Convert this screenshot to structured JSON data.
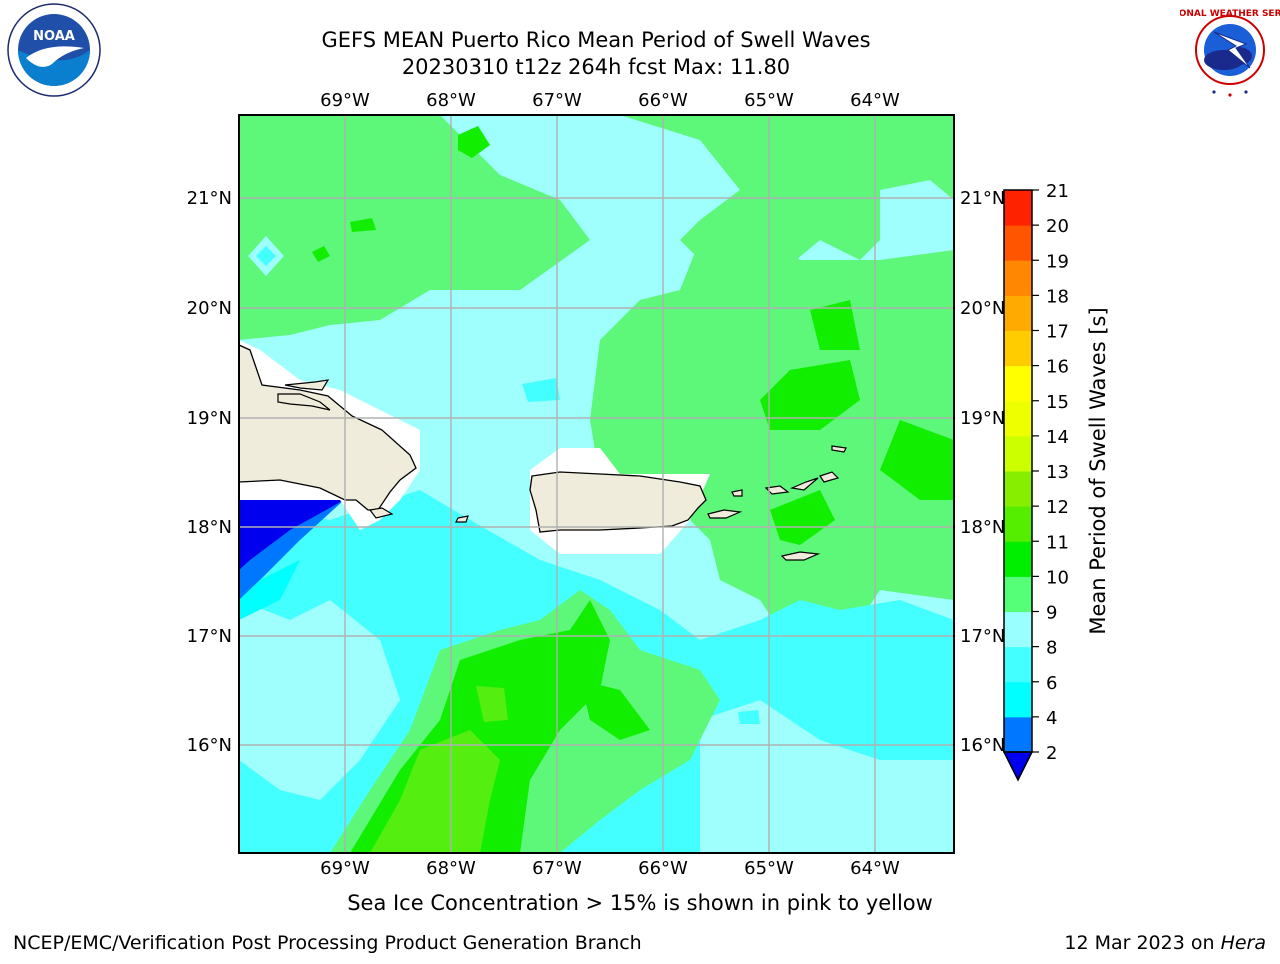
{
  "title": {
    "line1": "GEFS MEAN Puerto Rico Mean Period of Swell Waves",
    "line2": "20230310 t12z 264h fcst   Max: 11.80"
  },
  "map": {
    "lon_labels": [
      "69°W",
      "68°W",
      "67°W",
      "66°W",
      "65°W",
      "64°W"
    ],
    "lat_labels": [
      "21°N",
      "20°N",
      "19°N",
      "18°N",
      "17°N",
      "16°N"
    ],
    "lon_range": [
      -70.0,
      -63.3
    ],
    "lat_range": [
      15.0,
      21.75
    ],
    "dominant_field": "Mean Period of Swell Waves"
  },
  "colorbar": {
    "label": "Mean Period of Swell Waves [s]",
    "ticks": [
      "2",
      "4",
      "6",
      "8",
      "9",
      "10",
      "11",
      "12",
      "13",
      "14",
      "15",
      "16",
      "17",
      "18",
      "19",
      "20",
      "21"
    ],
    "colors": [
      "#0000ff",
      "#0077ff",
      "#00ffff",
      "#44ffff",
      "#99ffff",
      "#55ff77",
      "#00ee00",
      "#55ee00",
      "#88ee00",
      "#ccff00",
      "#eeff00",
      "#ffff00",
      "#ffcc00",
      "#ffaa00",
      "#ff8800",
      "#ff5500",
      "#ff2200",
      "#ff0000"
    ],
    "under_color": "#0000ee"
  },
  "colors": {
    "land": "#efecdc",
    "grid": "#b0b0b0",
    "cyan_light": "#9ffffc",
    "cyan": "#44ffff",
    "green": "#5df77a",
    "green_dark": "#11ee00",
    "lime": "#55ee11",
    "blue": "#0000ee",
    "blue_mid": "#0077ff"
  },
  "subtitle": "Sea Ice Concentration > 15% is shown in pink to yellow",
  "footer": {
    "left": "NCEP/EMC/Verification Post Processing Product Generation Branch",
    "date": "12 Mar 2023 on ",
    "machine": "Hera"
  },
  "logos": {
    "noaa_text": "NOAA",
    "nws_text": "NATIONAL WEATHER SERVICE"
  }
}
